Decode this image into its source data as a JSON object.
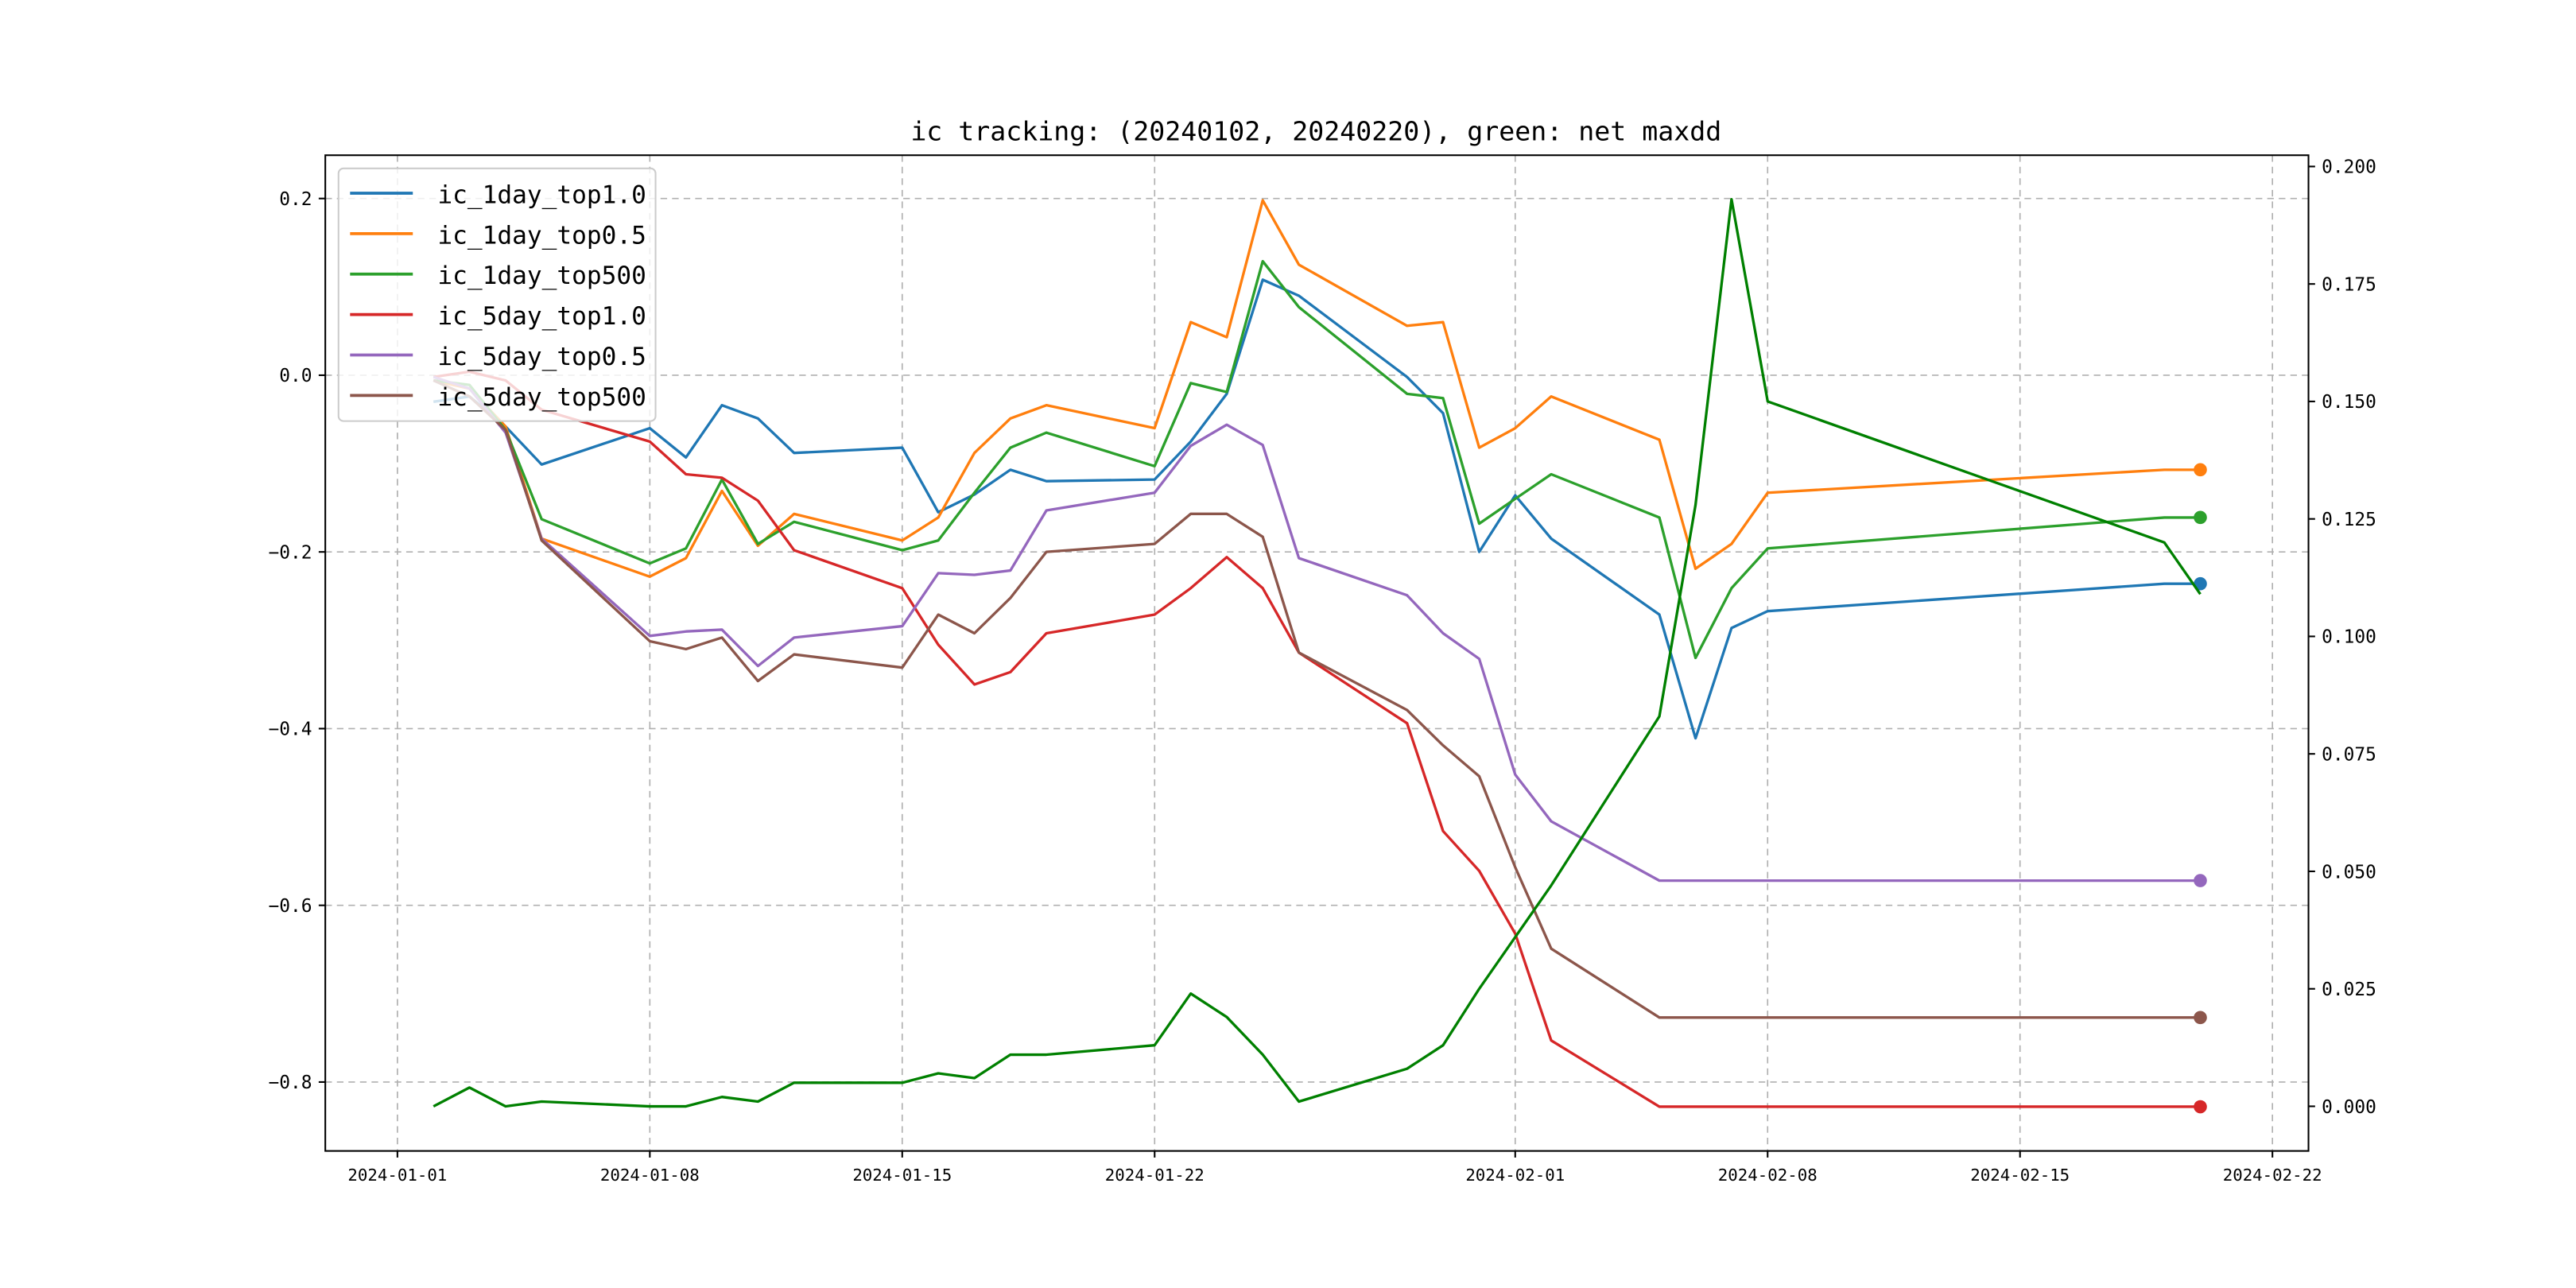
{
  "chart_data": {
    "type": "line",
    "title": "ic tracking: (20240102, 20240220), green: net maxdd",
    "xlabel": "",
    "ylabel": "",
    "grid": true,
    "legend_placement": "top-left",
    "x": [
      "2024-01-02",
      "2024-01-03",
      "2024-01-04",
      "2024-01-05",
      "2024-01-08",
      "2024-01-09",
      "2024-01-10",
      "2024-01-11",
      "2024-01-12",
      "2024-01-15",
      "2024-01-16",
      "2024-01-17",
      "2024-01-18",
      "2024-01-19",
      "2024-01-22",
      "2024-01-23",
      "2024-01-24",
      "2024-01-25",
      "2024-01-26",
      "2024-01-29",
      "2024-01-30",
      "2024-01-31",
      "2024-02-01",
      "2024-02-02",
      "2024-02-05",
      "2024-02-06",
      "2024-02-07",
      "2024-02-08",
      "2024-02-19",
      "2024-02-20"
    ],
    "x_ticks": [
      "2024-01-01",
      "2024-01-08",
      "2024-01-15",
      "2024-01-22",
      "2024-02-01",
      "2024-02-08",
      "2024-02-15",
      "2024-02-22"
    ],
    "xlim": [
      "2023-12-30",
      "2024-02-23"
    ],
    "y_left_ticks": [
      "0.2",
      "0.0",
      "−0.2",
      "−0.4",
      "−0.6",
      "−0.8"
    ],
    "y_left_tick_values": [
      0.2,
      0.0,
      -0.2,
      -0.4,
      -0.6,
      -0.8
    ],
    "ylim_left": [
      -0.878,
      0.249
    ],
    "y_right_ticks": [
      "0.200",
      "0.175",
      "0.150",
      "0.125",
      "0.100",
      "0.075",
      "0.050",
      "0.025",
      "0.000"
    ],
    "y_right_tick_values": [
      0.2,
      0.175,
      0.15,
      0.125,
      0.1,
      0.075,
      0.05,
      0.025,
      0.0
    ],
    "ylim_right": [
      -0.0095,
      0.2024
    ],
    "series": [
      {
        "name": "ic_1day_top1.0",
        "axis": "left",
        "color": "#1f77b4",
        "end_marker": true,
        "values": [
          -0.03,
          -0.024,
          -0.058,
          -0.101,
          -0.06,
          -0.093,
          -0.034,
          -0.049,
          -0.088,
          -0.082,
          -0.155,
          -0.135,
          -0.107,
          -0.12,
          -0.118,
          -0.075,
          -0.021,
          0.108,
          0.09,
          -0.002,
          -0.043,
          -0.2,
          -0.136,
          -0.185,
          -0.271,
          -0.411,
          -0.286,
          -0.267,
          -0.236,
          -0.236
        ]
      },
      {
        "name": "ic_1day_top0.5",
        "axis": "left",
        "color": "#ff7f0e",
        "end_marker": true,
        "values": [
          -0.006,
          -0.015,
          -0.058,
          -0.185,
          -0.228,
          -0.207,
          -0.131,
          -0.193,
          -0.157,
          -0.187,
          -0.161,
          -0.088,
          -0.049,
          -0.034,
          -0.06,
          0.06,
          0.043,
          0.198,
          0.125,
          0.056,
          0.06,
          -0.082,
          -0.06,
          -0.024,
          -0.073,
          -0.219,
          -0.191,
          -0.133,
          -0.107,
          -0.107
        ]
      },
      {
        "name": "ic_1day_top500",
        "axis": "left",
        "color": "#2ca02c",
        "end_marker": true,
        "values": [
          -0.006,
          -0.011,
          -0.062,
          -0.163,
          -0.213,
          -0.196,
          -0.118,
          -0.191,
          -0.166,
          -0.198,
          -0.187,
          -0.133,
          -0.082,
          -0.065,
          -0.103,
          -0.009,
          -0.019,
          0.129,
          0.077,
          -0.021,
          -0.026,
          -0.168,
          -0.14,
          -0.112,
          -0.161,
          -0.32,
          -0.241,
          -0.196,
          -0.161,
          -0.161
        ]
      },
      {
        "name": "ic_5day_top1.0",
        "axis": "left",
        "color": "#d62728",
        "end_marker": true,
        "values": [
          -0.002,
          0.004,
          -0.006,
          -0.039,
          -0.075,
          -0.112,
          -0.116,
          -0.142,
          -0.198,
          -0.241,
          -0.305,
          -0.35,
          -0.336,
          -0.292,
          -0.271,
          -0.241,
          -0.206,
          -0.241,
          -0.314,
          -0.394,
          -0.516,
          -0.561,
          -0.632,
          -0.753,
          -0.828,
          -0.828,
          -0.828,
          -0.828,
          -0.828,
          -0.828
        ]
      },
      {
        "name": "ic_5day_top0.5",
        "axis": "left",
        "color": "#9467bd",
        "end_marker": true,
        "values": [
          -0.002,
          -0.015,
          -0.065,
          -0.185,
          -0.295,
          -0.29,
          -0.288,
          -0.329,
          -0.297,
          -0.284,
          -0.224,
          -0.226,
          -0.221,
          -0.153,
          -0.133,
          -0.08,
          -0.056,
          -0.079,
          -0.207,
          -0.249,
          -0.292,
          -0.321,
          -0.452,
          -0.505,
          -0.572,
          -0.572,
          -0.572,
          -0.572,
          -0.572,
          -0.572
        ]
      },
      {
        "name": "ic_5day_top500",
        "axis": "left",
        "color": "#8c564b",
        "end_marker": true,
        "values": [
          -0.006,
          -0.024,
          -0.062,
          -0.187,
          -0.301,
          -0.31,
          -0.297,
          -0.346,
          -0.316,
          -0.331,
          -0.271,
          -0.292,
          -0.252,
          -0.2,
          -0.191,
          -0.157,
          -0.157,
          -0.183,
          -0.314,
          -0.379,
          -0.419,
          -0.454,
          -0.557,
          -0.649,
          -0.727,
          -0.727,
          -0.727,
          -0.727,
          -0.727,
          -0.727
        ]
      },
      {
        "name": "net maxdd",
        "axis": "right",
        "color": "#008000",
        "end_marker": false,
        "in_legend": false,
        "values": [
          0.0,
          0.004,
          0.0,
          0.001,
          0.0,
          0.0,
          0.002,
          0.001,
          0.005,
          0.005,
          0.007,
          0.006,
          0.011,
          0.011,
          0.013,
          0.024,
          0.019,
          0.011,
          0.001,
          0.008,
          0.013,
          0.025,
          0.036,
          0.047,
          0.083,
          0.128,
          0.193,
          0.15,
          0.12,
          0.109
        ]
      }
    ]
  }
}
